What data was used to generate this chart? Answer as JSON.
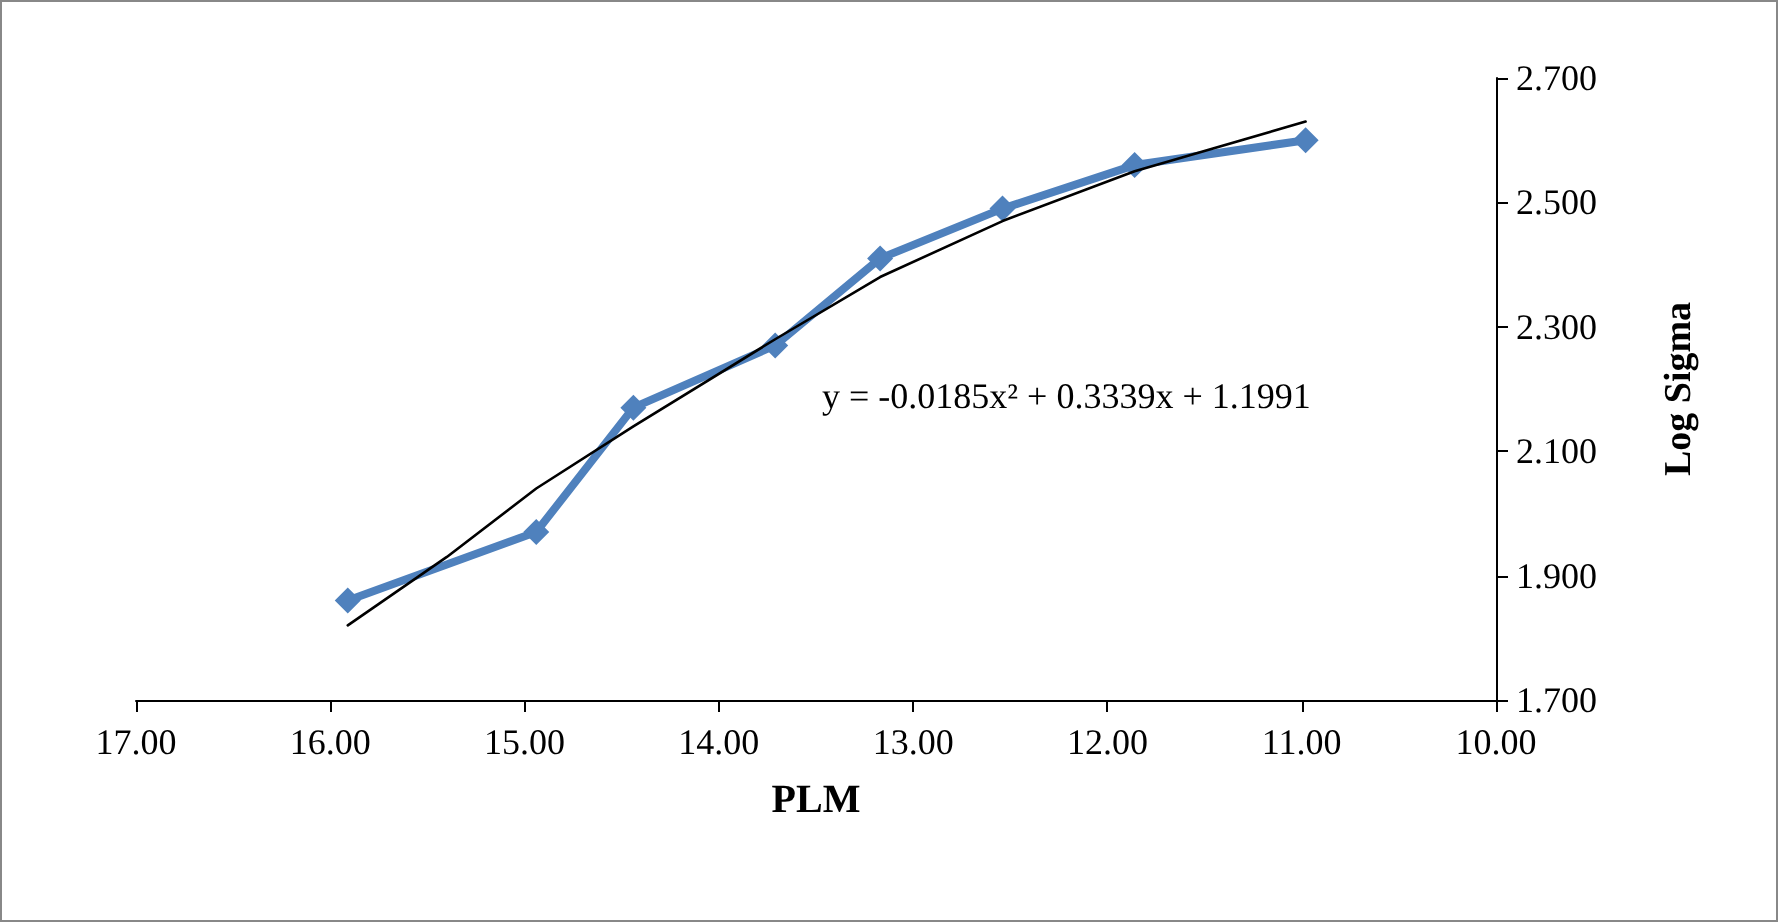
{
  "chart_data": {
    "type": "line",
    "xlabel": "PLM",
    "ylabel": "Log Sigma",
    "xlim": [
      17,
      10
    ],
    "xticks": [
      {
        "value": 17,
        "label": "17.00"
      },
      {
        "value": 16,
        "label": "16.00"
      },
      {
        "value": 15,
        "label": "15.00"
      },
      {
        "value": 14,
        "label": "14.00"
      },
      {
        "value": 13,
        "label": "13.00"
      },
      {
        "value": 12,
        "label": "12.00"
      },
      {
        "value": 11,
        "label": "11.00"
      },
      {
        "value": 10,
        "label": "10.00"
      }
    ],
    "ylim": [
      1.7,
      2.7
    ],
    "yticks": [
      {
        "value": 1.7,
        "label": "1.700"
      },
      {
        "value": 1.9,
        "label": "1.900"
      },
      {
        "value": 2.1,
        "label": "2.100"
      },
      {
        "value": 2.3,
        "label": "2.300"
      },
      {
        "value": 2.5,
        "label": "2.500"
      },
      {
        "value": 2.7,
        "label": "2.700"
      }
    ],
    "grid": false,
    "marker": "diamond",
    "line_style": "solid",
    "series": [
      {
        "color": "#4f81bd",
        "x": [
          15.91,
          14.94,
          14.44,
          13.71,
          13.17,
          12.54,
          11.86,
          10.98
        ],
        "values": [
          1.86,
          1.97,
          2.17,
          2.27,
          2.41,
          2.49,
          2.56,
          2.6
        ]
      },
      {
        "type": "line",
        "marker": "none",
        "color": "#000000",
        "x": [
          15.91,
          15.4,
          14.94,
          14.44,
          13.71,
          13.17,
          12.54,
          11.86,
          10.98
        ],
        "values": [
          1.82,
          1.93,
          2.04,
          2.14,
          2.28,
          2.38,
          2.47,
          2.55,
          2.63
        ]
      }
    ],
    "annotations": [
      "y = -0.0185x² + 0.3339x + 1.1991"
    ]
  }
}
